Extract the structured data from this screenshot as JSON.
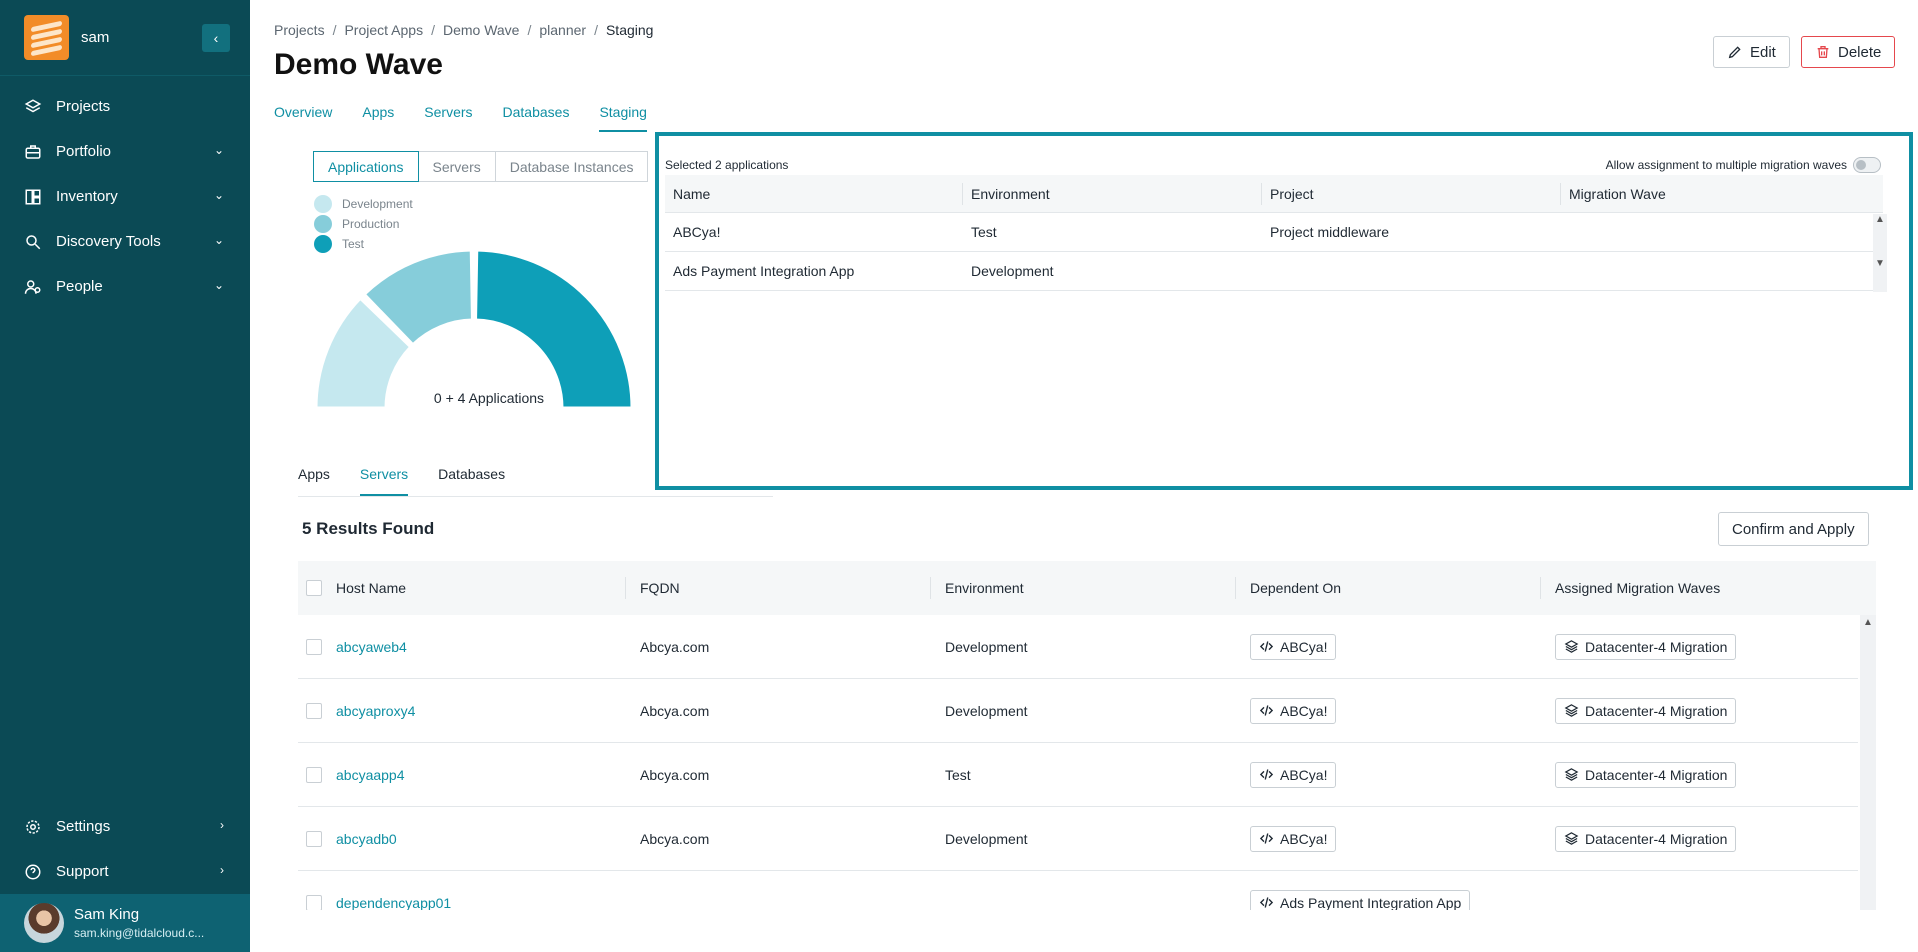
{
  "sidebar": {
    "org_name": "sam",
    "collapse_icon": "‹",
    "items": [
      {
        "label": "Projects",
        "icon": "layers-icon"
      },
      {
        "label": "Portfolio",
        "icon": "briefcase-icon"
      },
      {
        "label": "Inventory",
        "icon": "inventory-icon"
      },
      {
        "label": "Discovery Tools",
        "icon": "search-icon"
      },
      {
        "label": "People",
        "icon": "people-icon"
      }
    ],
    "bottom_items": [
      {
        "label": "Settings",
        "icon": "gear-icon"
      },
      {
        "label": "Support",
        "icon": "help-icon"
      }
    ],
    "user": {
      "name": "Sam King",
      "email": "sam.king@tidalcloud.c..."
    }
  },
  "breadcrumb": {
    "items": [
      "Projects",
      "Project Apps",
      "Demo Wave",
      "planner"
    ],
    "current": "Staging",
    "separator": "/"
  },
  "page": {
    "title": "Demo Wave",
    "edit_label": "Edit",
    "delete_label": "Delete"
  },
  "tabs": [
    "Overview",
    "Apps",
    "Servers",
    "Databases",
    "Staging"
  ],
  "active_tab": "Staging",
  "chart_panel": {
    "segments": [
      "Applications",
      "Servers",
      "Database Instances"
    ],
    "active_segment": "Applications",
    "legend": [
      {
        "label": "Development",
        "color": "#c5e8ef"
      },
      {
        "label": "Production",
        "color": "#86cdda"
      },
      {
        "label": "Test",
        "color": "#0e9fb8"
      }
    ],
    "center_label": "0 + 4 Applications"
  },
  "chart_data": {
    "type": "pie",
    "style": "half-donut",
    "categories": [
      "Development",
      "Production",
      "Test"
    ],
    "values": [
      1,
      1,
      2
    ]
  },
  "subtabs": [
    "Apps",
    "Servers",
    "Databases"
  ],
  "active_subtab": "Servers",
  "selected_panel": {
    "summary": "Selected 2 applications",
    "toggle_label": "Allow assignment to multiple migration waves",
    "toggle_on": false,
    "columns": [
      "Name",
      "Environment",
      "Project",
      "Migration Wave"
    ],
    "rows": [
      [
        "ABCya!",
        "Test",
        "Project middleware",
        ""
      ],
      [
        "Ads Payment Integration App",
        "Development",
        "",
        ""
      ]
    ]
  },
  "results": {
    "count_label": "5 Results Found",
    "confirm_label": "Confirm and Apply",
    "columns": [
      "Host Name",
      "FQDN",
      "Environment",
      "Dependent On",
      "Assigned Migration Waves"
    ],
    "rows": [
      {
        "host": "abcyaweb4",
        "fqdn": "Abcya.com",
        "env": "Development",
        "dep": "ABCya!",
        "wave": "Datacenter-4 Migration"
      },
      {
        "host": "abcyaproxy4",
        "fqdn": "Abcya.com",
        "env": "Development",
        "dep": "ABCya!",
        "wave": "Datacenter-4 Migration"
      },
      {
        "host": "abcyaapp4",
        "fqdn": "Abcya.com",
        "env": "Test",
        "dep": "ABCya!",
        "wave": "Datacenter-4 Migration"
      },
      {
        "host": "abcyadb0",
        "fqdn": "Abcya.com",
        "env": "Development",
        "dep": "ABCya!",
        "wave": "Datacenter-4 Migration"
      },
      {
        "host": "dependencyapp01",
        "fqdn": "",
        "env": "",
        "dep": "Ads Payment Integration App",
        "wave": ""
      }
    ]
  },
  "colors": {
    "sidebar_bg": "#0b4a55",
    "accent": "#0f8fa3",
    "delete_border": "#e5484d"
  }
}
